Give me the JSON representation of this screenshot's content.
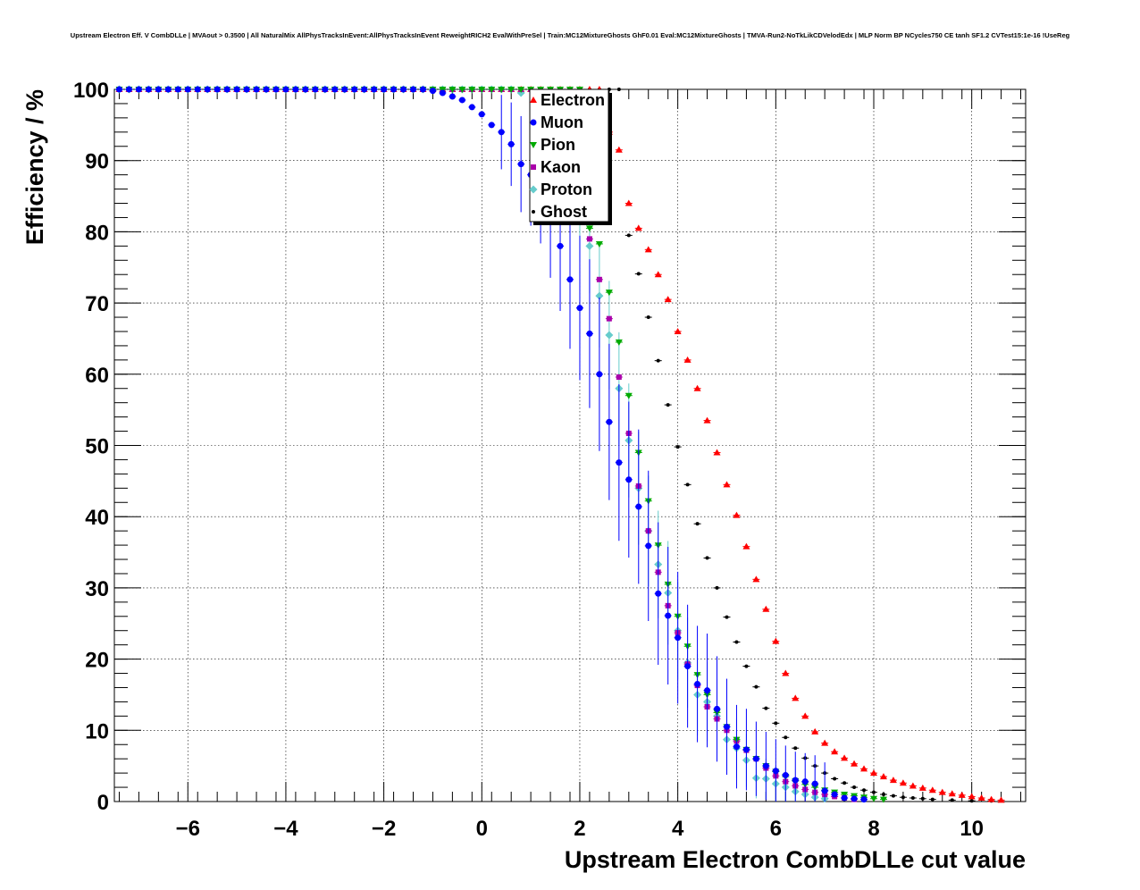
{
  "chart_data": {
    "type": "scatter",
    "title": "Upstream Electron Eff. V CombDLLe | MVAout > 0.3500 | All NaturalMix AllPhysTracksInEvent:AllPhysTracksInEvent ReweightRICH2 EvalWithPreSel | Train:MC12MixtureGhosts GhF0.01 Eval:MC12MixtureGhosts | TMVA-Run2-NoTkLikCDVelodEdx | MLP Norm BP NCycles750 CE tanh SF1.2 CVTest15:1e-16 !UseReg",
    "xlabel": "Upstream Electron CombDLLe cut value",
    "ylabel": "Efficiency / %",
    "xlim": [
      -7.5,
      11.1
    ],
    "ylim": [
      0,
      100
    ],
    "x_ticks": [
      -6,
      -4,
      -2,
      0,
      2,
      4,
      6,
      8,
      10
    ],
    "x_tick_labels": [
      "−6",
      "−4",
      "−2",
      "0",
      "2",
      "4",
      "6",
      "8",
      "10"
    ],
    "y_ticks": [
      0,
      10,
      20,
      30,
      40,
      50,
      60,
      70,
      80,
      90,
      100
    ],
    "y_tick_labels": [
      "0",
      "10",
      "20",
      "30",
      "40",
      "50",
      "60",
      "70",
      "80",
      "90",
      "100"
    ],
    "grid": true,
    "legend_position": "top-center",
    "series": [
      {
        "name": "Electron",
        "color": "#ff0000",
        "marker": "triangle-up",
        "points": [
          [
            -7.4,
            100
          ],
          [
            2.6,
            94
          ],
          [
            2.8,
            91.5
          ],
          [
            3.0,
            84
          ],
          [
            3.2,
            80.5
          ],
          [
            3.4,
            77.5
          ],
          [
            3.6,
            74
          ],
          [
            3.8,
            70.5
          ],
          [
            4.0,
            66
          ],
          [
            4.2,
            62
          ],
          [
            4.4,
            58
          ],
          [
            4.6,
            53.5
          ],
          [
            4.8,
            49
          ],
          [
            5.0,
            44.5
          ],
          [
            5.2,
            40.2
          ],
          [
            5.4,
            35.8
          ],
          [
            5.6,
            31.2
          ],
          [
            5.8,
            27
          ],
          [
            6.0,
            22.5
          ],
          [
            6.2,
            18
          ],
          [
            6.4,
            14.5
          ],
          [
            6.6,
            12
          ],
          [
            6.8,
            9.8
          ],
          [
            7.0,
            8.2
          ],
          [
            7.2,
            7
          ],
          [
            7.4,
            6.1
          ],
          [
            7.6,
            5.3
          ],
          [
            7.8,
            4.6
          ],
          [
            8.0,
            4
          ],
          [
            8.2,
            3.5
          ],
          [
            8.4,
            3
          ],
          [
            8.6,
            2.6
          ],
          [
            8.8,
            2.2
          ],
          [
            9.0,
            1.9
          ],
          [
            9.2,
            1.6
          ],
          [
            9.4,
            1.3
          ],
          [
            9.6,
            1.1
          ],
          [
            9.8,
            0.9
          ],
          [
            10.0,
            0.7
          ],
          [
            10.2,
            0.5
          ],
          [
            10.4,
            0.3
          ],
          [
            10.6,
            0.2
          ]
        ]
      },
      {
        "name": "Muon",
        "color": "#0000ff",
        "marker": "circle",
        "points": [
          [
            -7.4,
            100
          ],
          [
            -1.0,
            99.8
          ],
          [
            -0.8,
            99.5
          ],
          [
            -0.6,
            99
          ],
          [
            -0.4,
            98.5
          ],
          [
            -0.2,
            97.5
          ],
          [
            0.0,
            96.5
          ],
          [
            0.2,
            95
          ],
          [
            0.4,
            94
          ],
          [
            0.6,
            92.3
          ],
          [
            0.8,
            89.5
          ],
          [
            1.0,
            88
          ],
          [
            1.2,
            86
          ],
          [
            1.4,
            82
          ],
          [
            1.6,
            78
          ],
          [
            1.8,
            73.3
          ],
          [
            2.0,
            69.3
          ],
          [
            2.2,
            65.7
          ],
          [
            2.4,
            60
          ],
          [
            2.6,
            53.3
          ],
          [
            2.8,
            47.6
          ],
          [
            3.0,
            45.2
          ],
          [
            3.2,
            41.4
          ],
          [
            3.4,
            35.9
          ],
          [
            3.6,
            29.2
          ],
          [
            3.8,
            26.1
          ],
          [
            4.0,
            23
          ],
          [
            4.2,
            19
          ],
          [
            4.4,
            16.5
          ],
          [
            4.6,
            15.6
          ],
          [
            4.8,
            13
          ],
          [
            5.0,
            10.5
          ],
          [
            5.2,
            7.7
          ],
          [
            5.4,
            7.3
          ],
          [
            5.6,
            6
          ],
          [
            5.8,
            5
          ],
          [
            6.0,
            4.3
          ],
          [
            6.2,
            3.7
          ],
          [
            6.4,
            3
          ],
          [
            6.6,
            2.8
          ],
          [
            6.8,
            2.5
          ],
          [
            7.0,
            1.5
          ],
          [
            7.2,
            1
          ],
          [
            7.4,
            0.5
          ],
          [
            7.6,
            0.4
          ],
          [
            7.8,
            0.3
          ]
        ]
      },
      {
        "name": "Pion",
        "color": "#00aa00",
        "marker": "triangle-down",
        "points": [
          [
            -7.4,
            100
          ],
          [
            2.2,
            80.5
          ],
          [
            2.4,
            78.3
          ],
          [
            2.6,
            71.5
          ],
          [
            2.8,
            64.5
          ],
          [
            3.0,
            57
          ],
          [
            3.2,
            49
          ],
          [
            3.4,
            42.2
          ],
          [
            3.6,
            36
          ],
          [
            3.8,
            30.5
          ],
          [
            4.0,
            26
          ],
          [
            4.2,
            21.8
          ],
          [
            4.4,
            17.8
          ],
          [
            4.6,
            15
          ],
          [
            4.8,
            12.5
          ],
          [
            5.0,
            10.5
          ],
          [
            5.2,
            8.7
          ],
          [
            5.4,
            7.3
          ],
          [
            5.6,
            6
          ],
          [
            5.8,
            5
          ],
          [
            6.0,
            4.2
          ],
          [
            6.2,
            3.5
          ],
          [
            6.4,
            2.9
          ],
          [
            6.6,
            2.4
          ],
          [
            6.8,
            2
          ],
          [
            7.0,
            1.6
          ],
          [
            7.2,
            1.3
          ],
          [
            7.4,
            1
          ],
          [
            7.6,
            0.8
          ],
          [
            7.8,
            0.6
          ],
          [
            8.0,
            0.4
          ],
          [
            8.2,
            0.3
          ]
        ]
      },
      {
        "name": "Kaon",
        "color": "#aa00aa",
        "marker": "square",
        "points": [
          [
            -7.4,
            100
          ],
          [
            2.2,
            79
          ],
          [
            2.4,
            73.3
          ],
          [
            2.6,
            67.8
          ],
          [
            2.8,
            59.6
          ],
          [
            3.0,
            51.7
          ],
          [
            3.2,
            44.3
          ],
          [
            3.4,
            38
          ],
          [
            3.6,
            32.2
          ],
          [
            3.8,
            27.5
          ],
          [
            4.0,
            23.7
          ],
          [
            4.2,
            19.3
          ],
          [
            4.4,
            16.3
          ],
          [
            4.6,
            13.3
          ],
          [
            4.8,
            11.6
          ],
          [
            5.0,
            10
          ],
          [
            5.2,
            8.5
          ],
          [
            5.4,
            7.2
          ],
          [
            5.6,
            6
          ],
          [
            5.8,
            4.7
          ],
          [
            6.0,
            3.6
          ],
          [
            6.2,
            2.8
          ],
          [
            6.4,
            2.2
          ],
          [
            6.6,
            1.7
          ],
          [
            6.8,
            1.3
          ],
          [
            7.0,
            1
          ],
          [
            7.2,
            0.7
          ],
          [
            7.4,
            0.5
          ],
          [
            7.6,
            0.3
          ]
        ]
      },
      {
        "name": "Proton",
        "color": "#66cccc",
        "marker": "diamond",
        "points": [
          [
            -7.4,
            100
          ],
          [
            0.8,
            99.5
          ],
          [
            2.0,
            82
          ],
          [
            2.2,
            78
          ],
          [
            2.4,
            71
          ],
          [
            2.6,
            65.5
          ],
          [
            2.8,
            58
          ],
          [
            3.0,
            50.7
          ],
          [
            3.2,
            44
          ],
          [
            3.4,
            38
          ],
          [
            3.6,
            33.3
          ],
          [
            3.8,
            29.3
          ],
          [
            4.0,
            24
          ],
          [
            4.2,
            19.5
          ],
          [
            4.4,
            15
          ],
          [
            4.6,
            14
          ],
          [
            4.8,
            12
          ],
          [
            5.0,
            8.7
          ],
          [
            5.2,
            7.5
          ],
          [
            5.4,
            5.8
          ],
          [
            5.6,
            3.3
          ],
          [
            5.8,
            3.2
          ],
          [
            6.0,
            2.5
          ],
          [
            6.2,
            2
          ],
          [
            6.4,
            1.4
          ],
          [
            6.6,
            1
          ],
          [
            6.8,
            0.6
          ],
          [
            7.0,
            0.4
          ]
        ]
      },
      {
        "name": "Ghost",
        "color": "#000000",
        "marker": "circle-small",
        "points": [
          [
            -7.4,
            100
          ],
          [
            3.0,
            79.5
          ],
          [
            3.2,
            74.1
          ],
          [
            3.4,
            68
          ],
          [
            3.6,
            61.9
          ],
          [
            3.8,
            55.7
          ],
          [
            4.0,
            49.8
          ],
          [
            4.2,
            44.5
          ],
          [
            4.4,
            39
          ],
          [
            4.6,
            34.2
          ],
          [
            4.8,
            30
          ],
          [
            5.0,
            25.9
          ],
          [
            5.2,
            22.4
          ],
          [
            5.4,
            19
          ],
          [
            5.6,
            16.1
          ],
          [
            5.8,
            13.1
          ],
          [
            6.0,
            11
          ],
          [
            6.2,
            9
          ],
          [
            6.4,
            7.5
          ],
          [
            6.6,
            6.1
          ],
          [
            6.8,
            5
          ],
          [
            7.0,
            4
          ],
          [
            7.2,
            3.2
          ],
          [
            7.4,
            2.6
          ],
          [
            7.6,
            2
          ],
          [
            7.8,
            1.6
          ],
          [
            8.0,
            1.3
          ],
          [
            8.2,
            1
          ],
          [
            8.4,
            0.8
          ],
          [
            8.6,
            0.6
          ],
          [
            8.8,
            0.5
          ],
          [
            9.0,
            0.4
          ],
          [
            9.2,
            0.3
          ],
          [
            9.6,
            0.2
          ],
          [
            10.0,
            0.1
          ],
          [
            10.4,
            0.1
          ]
        ]
      }
    ]
  }
}
